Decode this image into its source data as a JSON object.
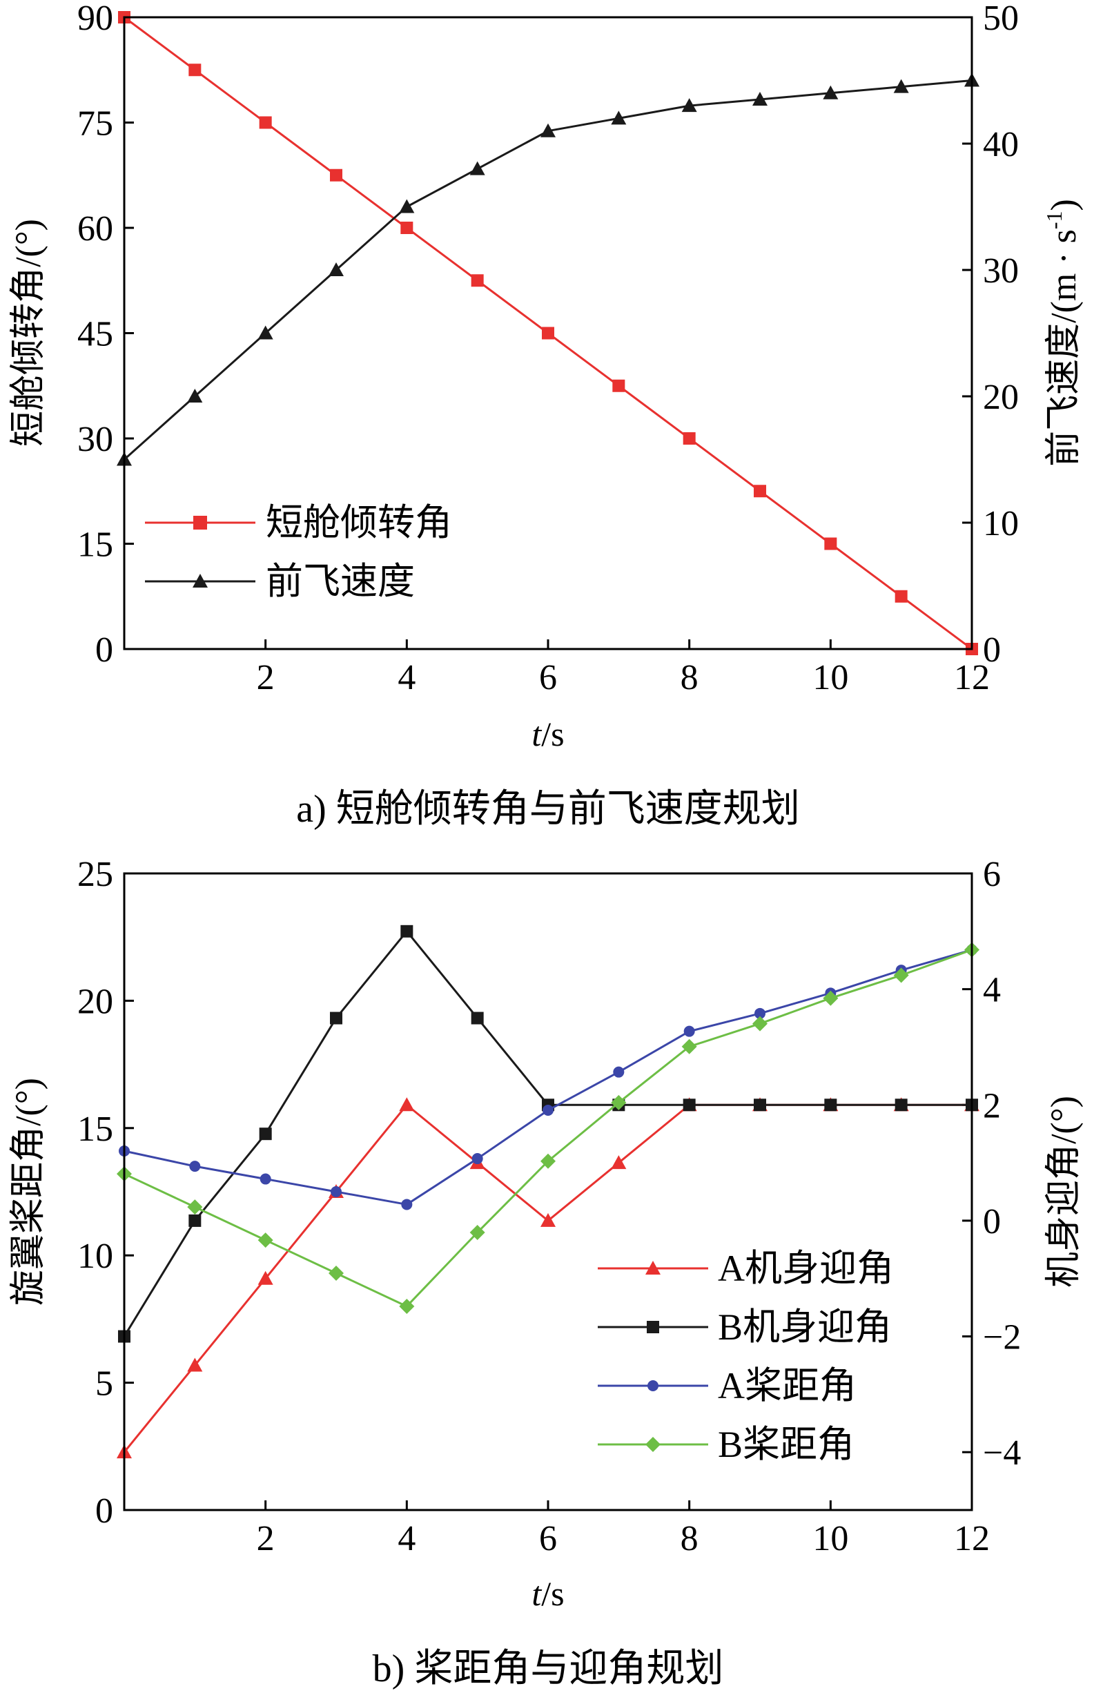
{
  "chart_data": [
    {
      "type": "line",
      "caption": "a) 短舱倾转角与前飞速度规划",
      "xlabel_italic": "t",
      "xlabel_rest": "/s",
      "ylabel_left": "短舱倾转角/(°)",
      "ylabel_right_main": "前飞速度/(m · s",
      "ylabel_right_sup": "-1",
      "ylabel_right_close": ")",
      "xlim": [
        0,
        12
      ],
      "ylim_left": [
        0,
        90
      ],
      "ylim_right": [
        0,
        50
      ],
      "xticks": [
        2,
        4,
        6,
        8,
        10,
        12
      ],
      "yticks_left": [
        0,
        15,
        30,
        45,
        60,
        75,
        90
      ],
      "yticks_right": [
        0,
        10,
        20,
        30,
        40,
        50
      ],
      "legend_position": "lower-left",
      "series": [
        {
          "name": "短舱倾转角",
          "axis": "left",
          "color": "#e8312f",
          "marker": "square",
          "x": [
            0,
            1,
            2,
            3,
            4,
            5,
            6,
            7,
            8,
            9,
            10,
            11,
            12
          ],
          "y": [
            90,
            82.5,
            75,
            67.5,
            60,
            52.5,
            45,
            37.5,
            30,
            22.5,
            15,
            7.5,
            0
          ]
        },
        {
          "name": "前飞速度",
          "axis": "right",
          "color": "#1a1a1a",
          "marker": "triangle",
          "x": [
            0,
            1,
            2,
            3,
            4,
            5,
            6,
            7,
            8,
            9,
            10,
            11,
            12
          ],
          "y": [
            15,
            20,
            25,
            30,
            35,
            38,
            41,
            42,
            43,
            43.5,
            44,
            44.5,
            45
          ]
        }
      ]
    },
    {
      "type": "line",
      "caption": "b) 桨距角与迎角规划",
      "xlabel_italic": "t",
      "xlabel_rest": "/s",
      "ylabel_left": "旋翼桨距角/(°)",
      "ylabel_right": "机身迎角/(°)",
      "xlim": [
        0,
        12
      ],
      "ylim_left": [
        0,
        25
      ],
      "ylim_right": [
        -5,
        6
      ],
      "xticks": [
        2,
        4,
        6,
        8,
        10,
        12
      ],
      "yticks_left": [
        0,
        5,
        10,
        15,
        20,
        25
      ],
      "yticks_right": [
        -4,
        -2,
        0,
        2,
        4,
        6
      ],
      "yticks_right_labels": [
        "−4",
        "−2",
        "0",
        "2",
        "4",
        "6"
      ],
      "legend_position": "lower-right",
      "series": [
        {
          "name": "A机身迎角",
          "axis": "right",
          "color": "#e8312f",
          "marker": "triangle",
          "x": [
            0,
            1,
            2,
            3,
            4,
            5,
            6,
            7,
            8,
            9,
            10,
            11,
            12
          ],
          "y": [
            -4,
            -2.5,
            -1,
            0.5,
            2,
            1,
            0,
            1,
            2,
            2,
            2,
            2,
            2
          ]
        },
        {
          "name": "B机身迎角",
          "axis": "right",
          "color": "#1a1a1a",
          "marker": "square",
          "x": [
            0,
            1,
            2,
            3,
            4,
            5,
            6,
            7,
            8,
            9,
            10,
            11,
            12
          ],
          "y": [
            -2,
            0,
            1.5,
            3.5,
            5,
            3.5,
            2,
            2,
            2,
            2,
            2,
            2,
            2
          ]
        },
        {
          "name": "A桨距角",
          "axis": "left",
          "color": "#3b46a8",
          "marker": "circle",
          "x": [
            0,
            1,
            2,
            3,
            4,
            5,
            6,
            7,
            8,
            9,
            10,
            11,
            12
          ],
          "y": [
            14.1,
            13.5,
            13,
            12.5,
            12,
            13.8,
            15.7,
            17.2,
            18.8,
            19.5,
            20.3,
            21.2,
            22
          ]
        },
        {
          "name": "B桨距角",
          "axis": "left",
          "color": "#6dbe45",
          "marker": "diamond",
          "x": [
            0,
            1,
            2,
            3,
            4,
            5,
            6,
            7,
            8,
            9,
            10,
            11,
            12
          ],
          "y": [
            13.2,
            11.9,
            10.6,
            9.3,
            8,
            10.9,
            13.7,
            16,
            18.2,
            19.1,
            20.1,
            21,
            22
          ]
        }
      ]
    }
  ]
}
